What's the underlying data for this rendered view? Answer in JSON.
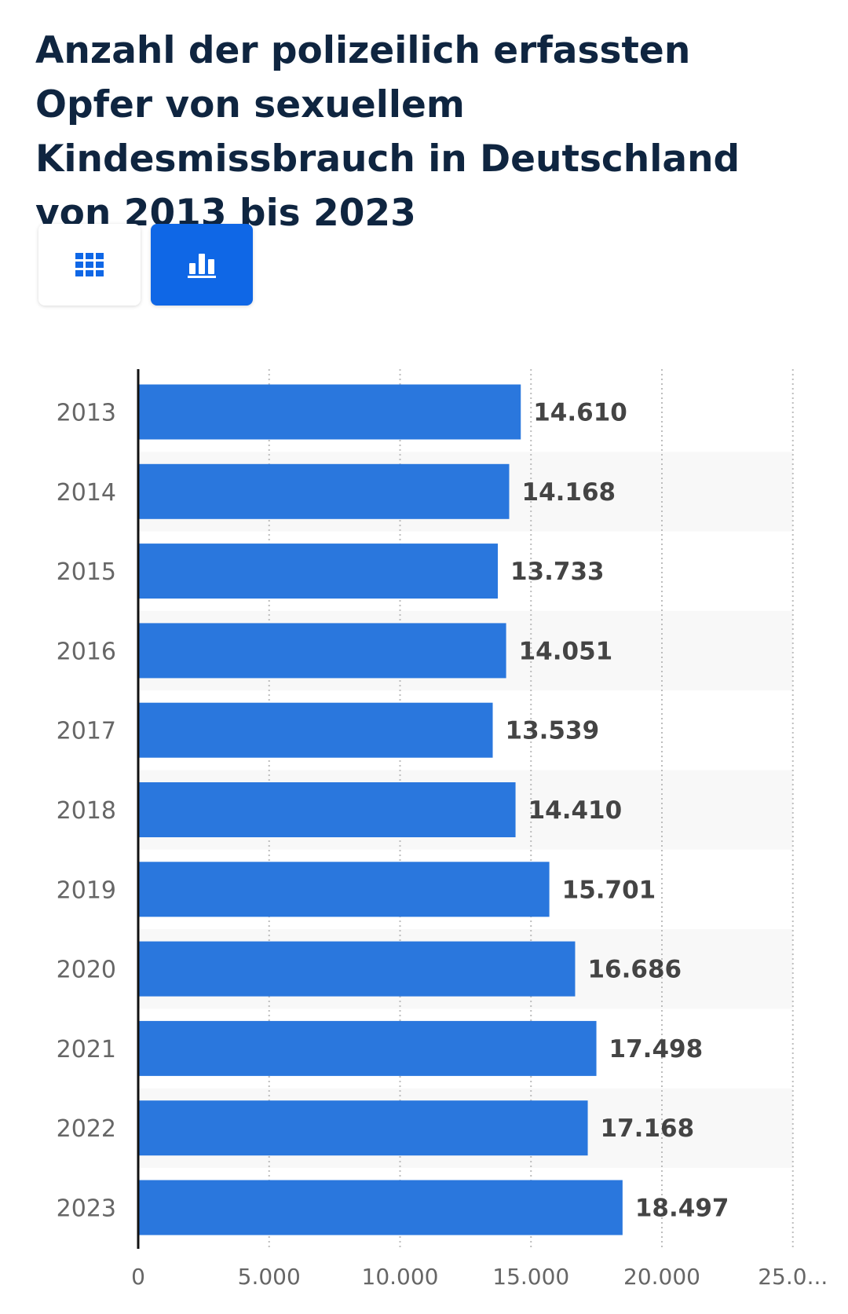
{
  "page": {
    "title": "Anzahl der polizeilich erfassten Opfer von sexuellem Kindesmissbrauch in Deutschland von 2013 bis 2023"
  },
  "view_toggle": {
    "table_icon": "grid-icon",
    "chart_icon": "bar-chart-icon",
    "active": "chart"
  },
  "colors": {
    "bar": "#2a77dd",
    "active_button": "#0f67e6",
    "title": "#0f2540",
    "value_label": "#444444",
    "category_label": "#666666",
    "row_stripe": "#f8f8f8"
  },
  "chart_data": {
    "type": "bar",
    "orientation": "horizontal",
    "title": "Anzahl der polizeilich erfassten Opfer von sexuellem Kindesmissbrauch in Deutschland von 2013 bis 2023",
    "xlabel": "",
    "ylabel": "",
    "categories": [
      "2013",
      "2014",
      "2015",
      "2016",
      "2017",
      "2018",
      "2019",
      "2020",
      "2021",
      "2022",
      "2023"
    ],
    "values": [
      14610,
      14168,
      13733,
      14051,
      13539,
      14410,
      15701,
      16686,
      17498,
      17168,
      18497
    ],
    "value_labels": [
      "14.610",
      "14.168",
      "13.733",
      "14.051",
      "13.539",
      "14.410",
      "15.701",
      "16.686",
      "17.498",
      "17.168",
      "18.497"
    ],
    "xlim": [
      0,
      25000
    ],
    "x_ticks": [
      0,
      5000,
      10000,
      15000,
      20000,
      25000
    ],
    "x_tick_labels": [
      "0",
      "5.000",
      "10.000",
      "15.000",
      "20.000",
      "25.0..."
    ],
    "grid": true,
    "grid_style": "dotted-vertical",
    "legend": "none"
  }
}
